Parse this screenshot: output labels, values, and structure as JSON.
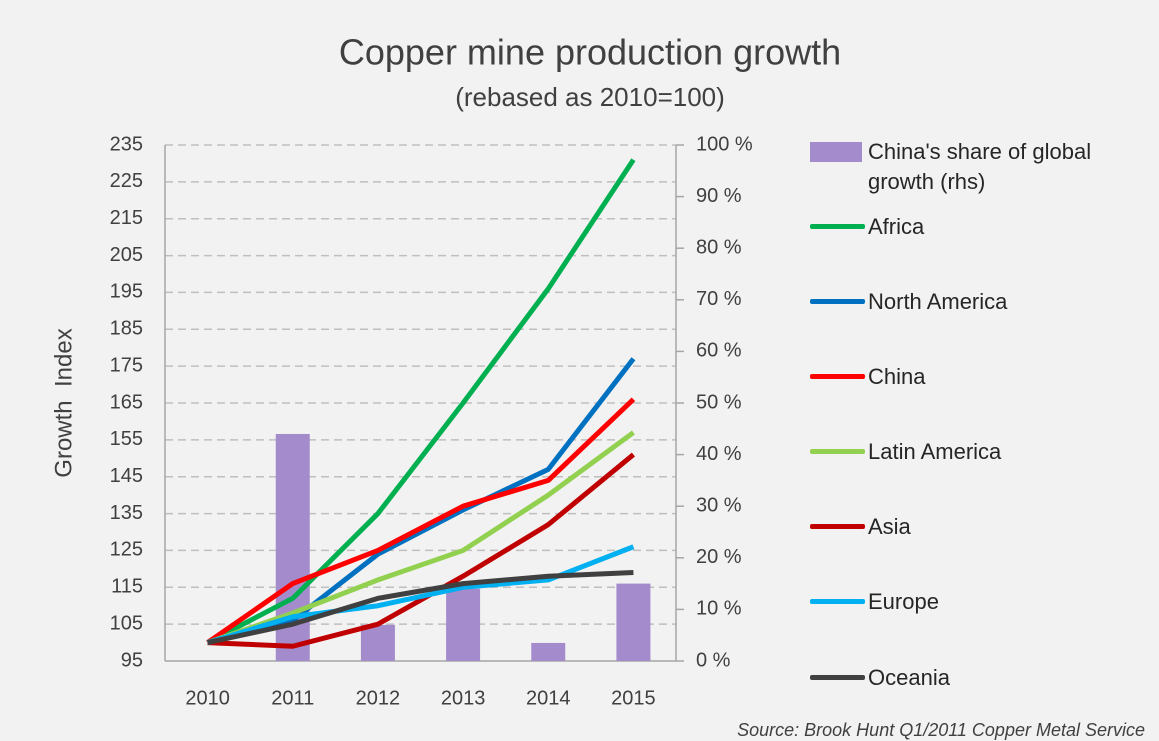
{
  "chart_data": {
    "type": "combo",
    "title": "Copper mine production growth",
    "subtitle": "(rebased as 2010=100)",
    "y_axis_label": "Growth  Index",
    "source": "Source: Brook Hunt Q1/2011 Copper Metal Service",
    "categories": [
      "2010",
      "2011",
      "2012",
      "2013",
      "2014",
      "2015"
    ],
    "ylim": [
      95,
      235
    ],
    "yticks": [
      95,
      105,
      115,
      125,
      135,
      145,
      155,
      165,
      175,
      185,
      195,
      205,
      215,
      225,
      235
    ],
    "y2lim": [
      0,
      100
    ],
    "y2ticks": [
      {
        "value": 0,
        "label": "0 %"
      },
      {
        "value": 10,
        "label": "10 %"
      },
      {
        "value": 20,
        "label": "20 %"
      },
      {
        "value": 30,
        "label": "30 %"
      },
      {
        "value": 40,
        "label": "40 %"
      },
      {
        "value": 50,
        "label": "50 %"
      },
      {
        "value": 60,
        "label": "60 %"
      },
      {
        "value": 70,
        "label": "70 %"
      },
      {
        "value": 80,
        "label": "80 %"
      },
      {
        "value": 90,
        "label": "90 %"
      },
      {
        "value": 100,
        "label": "100 %"
      }
    ],
    "grid": true,
    "legend": "right",
    "series": [
      {
        "name": "China's share of global growth (rhs)",
        "type": "bar",
        "axis": "y2",
        "color": "#a48bcc",
        "values": [
          null,
          44,
          7,
          14,
          3.5,
          15
        ]
      },
      {
        "name": "Africa",
        "type": "line",
        "color": "#00b050",
        "values": [
          100,
          112,
          135,
          165,
          196,
          231
        ]
      },
      {
        "name": "North America",
        "type": "line",
        "color": "#0070c0",
        "values": [
          100,
          106,
          124,
          136,
          147,
          177
        ]
      },
      {
        "name": "China",
        "type": "line",
        "color": "#ff0000",
        "values": [
          100,
          116,
          125,
          137,
          144,
          166
        ]
      },
      {
        "name": "Latin America",
        "type": "line",
        "color": "#92d050",
        "values": [
          100,
          108,
          117,
          125,
          140,
          157
        ]
      },
      {
        "name": "Asia",
        "type": "line",
        "color": "#c00000",
        "values": [
          100,
          99,
          105,
          118,
          132,
          151
        ]
      },
      {
        "name": "Europe",
        "type": "line",
        "color": "#00b0f0",
        "values": [
          100,
          107,
          110,
          115,
          117,
          126
        ]
      },
      {
        "name": "Oceania",
        "type": "line",
        "color": "#404040",
        "values": [
          100,
          105,
          112,
          116,
          118,
          119
        ]
      }
    ]
  }
}
